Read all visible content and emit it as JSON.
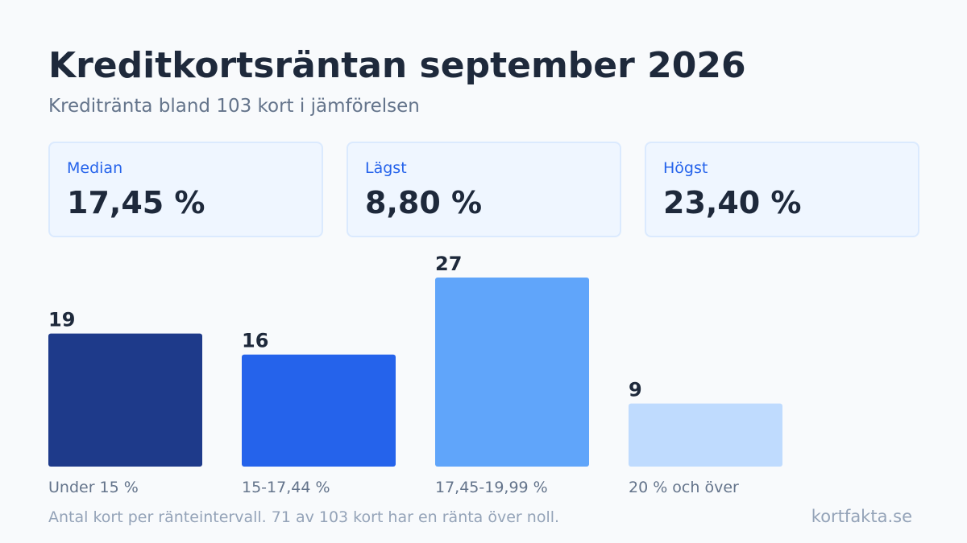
{
  "header": {
    "title": "Kreditkortsräntan september 2026",
    "subtitle": "Kreditränta bland 103 kort i jämförelsen"
  },
  "stats": [
    {
      "label": "Median",
      "value": "17,45 %"
    },
    {
      "label": "Lägst",
      "value": "8,80 %"
    },
    {
      "label": "Högst",
      "value": "23,40 %"
    }
  ],
  "colors": {
    "bar1": "#1e3a8a",
    "bar2": "#2563eb",
    "bar3": "#60a5fa",
    "bar4": "#bfdbfe",
    "value_text": "#1e293b",
    "category_text": "#64748b"
  },
  "chart_data": {
    "type": "bar",
    "categories": [
      "Under 15 %",
      "15-17,44 %",
      "17,45-19,99 %",
      "20 % och över"
    ],
    "values": [
      19,
      16,
      27,
      9
    ],
    "ylim": [
      0,
      27
    ],
    "grid": false
  },
  "footer": {
    "note": "Antal kort per ränteintervall. 71 av 103 kort har en ränta över noll.",
    "brand": "kortfakta.se"
  }
}
